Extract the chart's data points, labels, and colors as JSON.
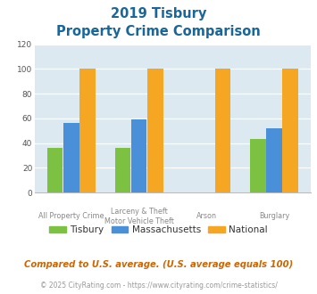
{
  "title_line1": "2019 Tisbury",
  "title_line2": "Property Crime Comparison",
  "cat_labels_row1": [
    "All Property Crime",
    "Larceny & Theft",
    "Arson",
    "Burglary"
  ],
  "cat_labels_row2": [
    "",
    "Motor Vehicle Theft",
    "",
    ""
  ],
  "tisbury": [
    36,
    36,
    0,
    43
  ],
  "massachusetts": [
    56,
    59,
    0,
    52
  ],
  "national": [
    100,
    100,
    100,
    100
  ],
  "tisbury_color": "#7cc142",
  "massachusetts_color": "#4a90d9",
  "national_color": "#f5a623",
  "ylim": [
    0,
    120
  ],
  "yticks": [
    0,
    20,
    40,
    60,
    80,
    100,
    120
  ],
  "bg_color": "#dce9f0",
  "title_color": "#1a6699",
  "footer_color": "#cc6600",
  "copyright_color": "#999999",
  "copyright_link_color": "#4a90d9",
  "footer_text": "Compared to U.S. average. (U.S. average equals 100)",
  "copyright_prefix": "© 2025 CityRating.com - ",
  "copyright_link": "https://www.cityrating.com/crime-statistics/"
}
